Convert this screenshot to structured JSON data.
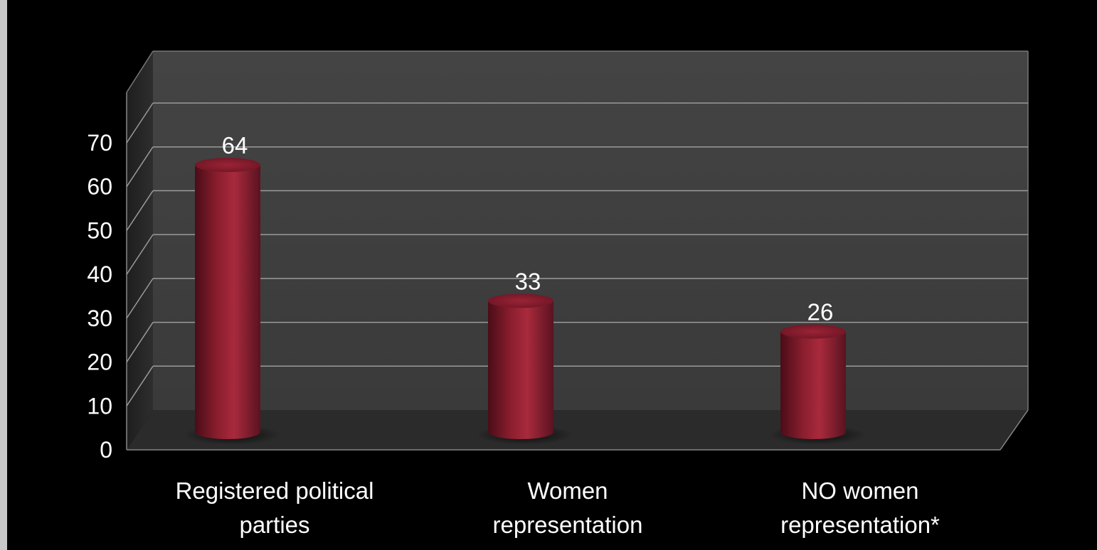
{
  "chart_data": {
    "type": "bar",
    "style": "3d-cylinder",
    "categories": [
      "Registered political parties",
      "Women representation",
      "NO women representation*"
    ],
    "category_lines": [
      [
        "Registered political",
        "parties"
      ],
      [
        "Women",
        "representation"
      ],
      [
        "NO women",
        "representation*"
      ]
    ],
    "values": [
      64,
      33,
      26
    ],
    "value_labels": [
      "64",
      "33",
      "26"
    ],
    "y_ticks": [
      "0",
      "10",
      "20",
      "30",
      "40",
      "50",
      "60",
      "70"
    ],
    "ylim": [
      0,
      70
    ],
    "title": "",
    "xlabel": "",
    "ylabel": "",
    "grid": true,
    "legend": "none",
    "colors": {
      "bar": "#8b1e2e",
      "bar_highlight": "#b83446",
      "bar_shadow": "#4a0d17",
      "wall": "#404040",
      "floor": "#2a2a2a",
      "gridline": "#9a9a9a",
      "background": "#000000",
      "text": "#ffffff"
    }
  }
}
